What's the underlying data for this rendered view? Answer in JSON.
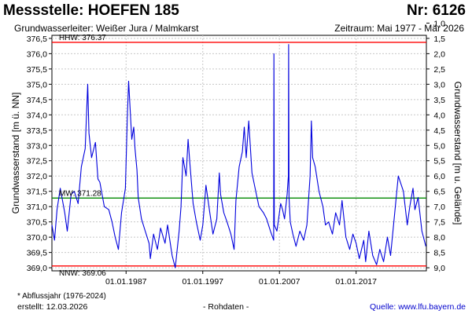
{
  "header": {
    "title": "Messstelle: HOEFEN 185",
    "station_number": "Nr: 6126",
    "aquifer": "Grundwasserleiter:  Weißer Jura / Malmkarst",
    "period": "Zeitraum: Mai 1977 - Mär 2026"
  },
  "footer": {
    "footnote": "* Abflussjahr (1976-2024)",
    "created": "erstellt:  12.03.2026",
    "raw_data": "- Rohdaten -",
    "source": "Quelle: www.lfu.bayern.de"
  },
  "colors": {
    "series": "#0000dd",
    "hhw_nnw": "#ff0000",
    "mw": "#008800",
    "grid": "#c8c8c8"
  },
  "chart_data": {
    "type": "line",
    "xlim": [
      "1977-05-01",
      "2026-03-01"
    ],
    "x_ticks": [
      "1987-01-01",
      "1997-01-01",
      "2007-01-01",
      "2017-01-01"
    ],
    "x_tick_labels": [
      "01.01.1987",
      "01.01.1997",
      "01.01.2007",
      "01.01.2017"
    ],
    "ylabel": "Grundwasserstand [m ü. NN]",
    "ylim": [
      368.9,
      376.6
    ],
    "y_ticks": [
      369.0,
      369.5,
      370.0,
      370.5,
      371.0,
      371.5,
      372.0,
      372.5,
      373.0,
      373.5,
      374.0,
      374.5,
      375.0,
      375.5,
      376.0,
      376.5
    ],
    "y_tick_labels": [
      "369,0",
      "369,5",
      "370,0",
      "370,5",
      "371,0",
      "371,5",
      "372,0",
      "372,5",
      "373,0",
      "373,5",
      "374,0",
      "374,5",
      "375,0",
      "375,5",
      "376,0",
      "376,5"
    ],
    "y2label": "Grundwasserstand [m u. Gelände]",
    "y2_ticks": [
      1.0,
      1.5,
      2.0,
      2.5,
      3.0,
      3.5,
      4.0,
      4.5,
      5.0,
      5.5,
      6.0,
      6.5,
      7.0,
      7.5,
      8.0,
      8.5,
      9.0
    ],
    "y2_tick_labels": [
      "1,0",
      "1,5",
      "2,0",
      "2,5",
      "3,0",
      "3,5",
      "4,0",
      "4,5",
      "5,0",
      "5,5",
      "6,0",
      "6,5",
      "7,0",
      "7,5",
      "8,0",
      "8,5",
      "9,0"
    ],
    "ground_level": 378.0,
    "grid": true,
    "reference_lines": [
      {
        "label": "HHW: 376.37",
        "value": 376.37,
        "color": "#ff0000"
      },
      {
        "label": "MW: 371.28",
        "value": 371.28,
        "color": "#008800"
      },
      {
        "label": "NNW: 369.06",
        "value": 369.06,
        "color": "#ff0000"
      }
    ],
    "series": [
      {
        "x": [
          "1977-05-01",
          "1977-09-01",
          "1978-01-01",
          "1978-06-01",
          "1979-01-01",
          "1979-05-01",
          "1979-11-01",
          "1980-04-01",
          "1980-10-01",
          "1981-03-01",
          "1981-09-01",
          "1982-01-01",
          "1982-03-01",
          "1982-07-01",
          "1983-01-01",
          "1983-05-01",
          "1983-08-01",
          "1984-03-01",
          "1984-10-01",
          "1985-03-01",
          "1985-08-01",
          "1986-01-01",
          "1986-06-01",
          "1986-12-01",
          "1987-03-01",
          "1987-05-01",
          "1987-10-01",
          "1988-01-01",
          "1988-03-01",
          "1988-06-01",
          "1988-08-01",
          "1989-01-01",
          "1989-07-01",
          "1990-01-01",
          "1990-03-01",
          "1990-08-01",
          "1991-02-01",
          "1991-07-01",
          "1992-02-01",
          "1992-06-01",
          "1993-01-01",
          "1993-06-01",
          "1993-12-01",
          "1994-03-01",
          "1994-06-01",
          "1994-11-01",
          "1995-02-01",
          "1995-05-01",
          "1995-10-01",
          "1996-03-01",
          "1996-09-01",
          "1997-01-01",
          "1997-06-01",
          "1997-12-01",
          "1998-05-01",
          "1998-11-01",
          "1999-03-01",
          "1999-05-01",
          "1999-10-01",
          "2000-03-01",
          "2000-09-01",
          "2001-02-01",
          "2001-05-01",
          "2001-10-01",
          "2002-03-01",
          "2002-06-01",
          "2002-09-01",
          "2003-01-01",
          "2003-06-01",
          "2003-12-01",
          "2004-05-01",
          "2004-12-01",
          "2005-05-01",
          "2005-11-01",
          "2006-04-01",
          "2006-04-15",
          "2006-05-01",
          "2006-09-01",
          "2007-03-01",
          "2007-06-01",
          "2007-09-01",
          "2008-01-01",
          "2008-03-01",
          "2008-03-15",
          "2008-04-01",
          "2008-06-01",
          "2008-10-01",
          "2009-03-01",
          "2009-09-01",
          "2010-03-01",
          "2010-08-01",
          "2011-01-01",
          "2011-03-01",
          "2011-05-01",
          "2011-09-01",
          "2012-03-01",
          "2012-09-01",
          "2013-01-01",
          "2013-06-01",
          "2013-12-01",
          "2014-05-01",
          "2014-11-01",
          "2015-03-01",
          "2015-09-01",
          "2016-03-01",
          "2016-08-01",
          "2017-01-01",
          "2017-06-01",
          "2018-01-01",
          "2018-04-01",
          "2018-09-01",
          "2019-03-01",
          "2019-09-01",
          "2020-02-01",
          "2020-08-01",
          "2021-02-01",
          "2021-07-01",
          "2022-01-01",
          "2022-07-01",
          "2023-03-01",
          "2023-09-01",
          "2024-01-01",
          "2024-06-01",
          "2024-09-01",
          "2025-02-01",
          "2025-08-01",
          "2026-02-01"
        ],
        "y": [
          370.4,
          369.9,
          370.9,
          371.6,
          370.8,
          370.2,
          371.4,
          371.5,
          371.1,
          372.3,
          372.9,
          375.0,
          373.4,
          372.6,
          373.1,
          371.9,
          371.8,
          371.0,
          370.9,
          370.5,
          370.0,
          369.6,
          370.8,
          371.6,
          373.9,
          375.1,
          373.2,
          373.6,
          372.9,
          372.2,
          371.3,
          370.6,
          370.2,
          369.8,
          369.3,
          370.1,
          369.6,
          370.3,
          369.8,
          370.4,
          369.4,
          369.0,
          370.2,
          371.0,
          372.6,
          372.0,
          373.2,
          372.4,
          371.1,
          370.5,
          369.9,
          370.4,
          371.7,
          370.8,
          370.1,
          370.6,
          372.1,
          371.4,
          370.8,
          370.5,
          370.1,
          369.6,
          371.2,
          372.3,
          372.8,
          373.6,
          372.6,
          373.8,
          372.1,
          371.5,
          371.0,
          370.8,
          370.6,
          370.2,
          369.9,
          376.0,
          370.4,
          370.2,
          371.1,
          370.9,
          370.6,
          371.4,
          372.0,
          376.3,
          371.3,
          370.5,
          370.1,
          369.7,
          370.2,
          369.9,
          370.4,
          372.0,
          373.8,
          372.6,
          372.3,
          371.5,
          371.0,
          370.4,
          370.5,
          370.1,
          370.8,
          370.4,
          371.2,
          370.0,
          369.6,
          370.1,
          369.8,
          369.3,
          369.9,
          369.2,
          370.2,
          369.4,
          369.1,
          369.6,
          369.2,
          370.0,
          369.4,
          370.7,
          372.0,
          371.5,
          370.4,
          371.0,
          371.6,
          370.9,
          371.3,
          370.2,
          369.7
        ]
      }
    ]
  }
}
